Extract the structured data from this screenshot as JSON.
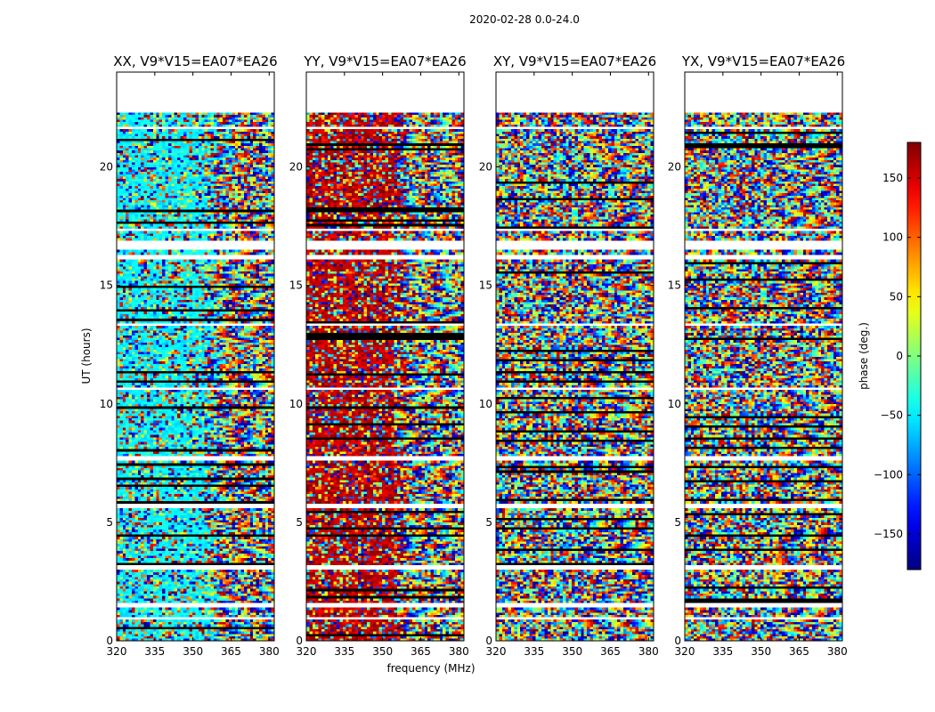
{
  "chart_data": {
    "type": "heatmap",
    "suptitle": "2020-02-28 0.0-24.0",
    "panels": [
      {
        "title": "XX, V9*V15=EA07*EA26",
        "polarization": "XX"
      },
      {
        "title": "YY, V9*V15=EA07*EA26",
        "polarization": "YY"
      },
      {
        "title": "XY, V9*V15=EA07*EA26",
        "polarization": "XY"
      },
      {
        "title": "YX, V9*V15=EA07*EA26",
        "polarization": "YX"
      }
    ],
    "xlabel": "frequency (MHz)",
    "ylabel": "UT (hours)",
    "xlim": [
      320,
      382
    ],
    "ylim": [
      0,
      24
    ],
    "xticks": [
      320,
      335,
      350,
      365,
      380
    ],
    "yticks": [
      0,
      5,
      10,
      15,
      20
    ],
    "data_extent_hours": [
      0,
      22.3
    ],
    "flagged_hours": [
      [
        0.9,
        1.0
      ],
      [
        1.45,
        1.55
      ],
      [
        3.0,
        3.2
      ],
      [
        5.6,
        5.8
      ],
      [
        7.6,
        7.8
      ],
      [
        10.6,
        10.75
      ],
      [
        13.3,
        13.45
      ],
      [
        16.1,
        16.3
      ],
      [
        16.5,
        16.9
      ],
      [
        17.3,
        17.45
      ],
      [
        21.6,
        21.7
      ]
    ],
    "colorbar": {
      "label": "phase (deg.)",
      "ticks": [
        150,
        100,
        50,
        0,
        -50,
        -100,
        -150
      ],
      "range": [
        -180,
        180
      ],
      "colormap": "jet"
    }
  }
}
